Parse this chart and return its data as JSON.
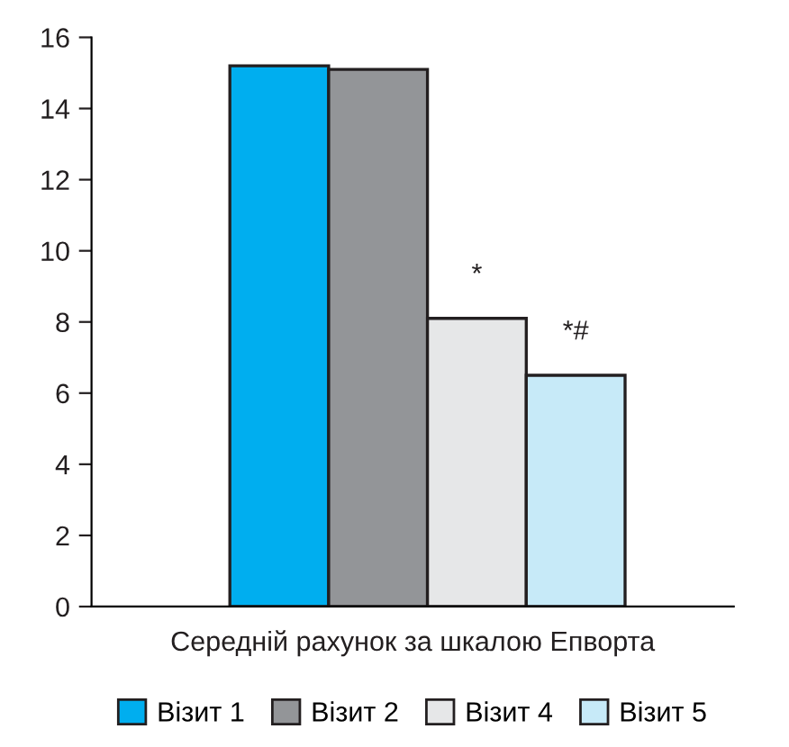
{
  "chart_data": {
    "type": "bar",
    "xlabel": "Середній рахунок за шкалою Епворта",
    "categories": [
      null
    ],
    "series": [
      {
        "name": "Візит 1",
        "color": "#00aeef",
        "values": [
          15.2
        ]
      },
      {
        "name": "Візит 2",
        "color": "#939598",
        "values": [
          15.1
        ]
      },
      {
        "name": "Візит 4",
        "color": "#e6e7e8",
        "values": [
          8.1
        ]
      },
      {
        "name": "Візит 5",
        "color": "#c7eaf8",
        "values": [
          6.5
        ]
      }
    ],
    "annotations": [
      "*",
      "*#"
    ],
    "ylim": [
      0,
      16
    ],
    "yticks": [
      0,
      2,
      4,
      6,
      8,
      10,
      12,
      14,
      16
    ],
    "grid": false,
    "legend": "bottom"
  }
}
